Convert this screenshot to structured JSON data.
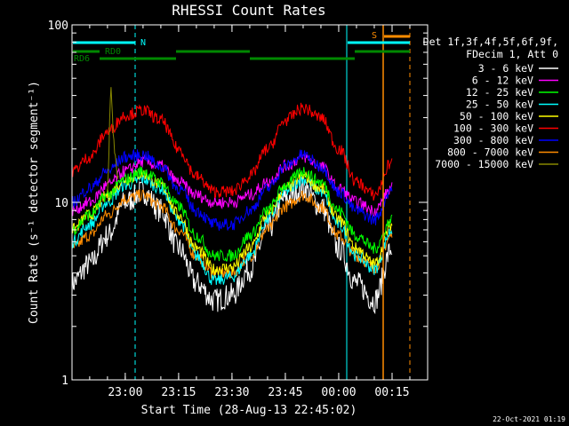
{
  "chart_data": {
    "type": "line",
    "title": "RHESSI Count Rates",
    "xlabel": "Start Time (28-Aug-13 22:45:02)",
    "ylabel": "Count Rate (s⁻¹ detector segment⁻¹)",
    "yscale": "log",
    "ylim": [
      1,
      100
    ],
    "xlim": [
      "22:45:02",
      "00:25:00"
    ],
    "x_ticks": [
      "23:00",
      "23:15",
      "23:30",
      "23:45",
      "00:00",
      "00:15"
    ],
    "y_ticks": [
      "1",
      "10",
      "100"
    ],
    "legend_header": [
      "Det 1f,3f,4f,5f,6f,9f,",
      "FDecim 1, Att 0"
    ],
    "legend_position": "right",
    "series": [
      {
        "name": "3 - 6 keV",
        "color": "#ffffff",
        "x": [
          "22:45",
          "22:50",
          "22:55",
          "23:00",
          "23:05",
          "23:10",
          "23:15",
          "23:20",
          "23:25",
          "23:30",
          "23:35",
          "23:40",
          "23:45",
          "23:50",
          "23:55",
          "00:00",
          "00:05",
          "00:10",
          "00:15"
        ],
        "values": [
          3.5,
          4.5,
          6.5,
          10,
          11.5,
          9,
          5.5,
          3.5,
          2.8,
          3.0,
          4.2,
          7,
          10.5,
          12,
          9.5,
          5.5,
          3.5,
          2.8,
          5.5
        ]
      },
      {
        "name": "6 - 12 keV",
        "color": "#ff00ff",
        "x": [
          "22:45",
          "22:50",
          "22:55",
          "23:00",
          "23:05",
          "23:10",
          "23:15",
          "23:20",
          "23:25",
          "23:30",
          "23:35",
          "23:40",
          "23:45",
          "23:50",
          "23:55",
          "00:00",
          "00:05",
          "00:10",
          "00:15"
        ],
        "values": [
          9,
          10,
          12.5,
          15,
          17,
          16,
          13,
          11,
          10,
          10,
          11,
          13,
          16,
          18,
          16,
          12,
          10,
          9,
          12
        ]
      },
      {
        "name": "12 - 25 keV",
        "color": "#00ff00",
        "x": [
          "22:45",
          "22:50",
          "22:55",
          "23:00",
          "23:05",
          "23:10",
          "23:15",
          "23:20",
          "23:25",
          "23:30",
          "23:35",
          "23:40",
          "23:45",
          "23:50",
          "23:55",
          "00:00",
          "00:05",
          "00:10",
          "00:15"
        ],
        "values": [
          7,
          8.5,
          11,
          13.5,
          15,
          13,
          9.5,
          6.5,
          5,
          5,
          6.5,
          9,
          12.5,
          15,
          13,
          9,
          6.5,
          5.5,
          8
        ]
      },
      {
        "name": "25 - 50 keV",
        "color": "#00ffff",
        "x": [
          "22:45",
          "22:50",
          "22:55",
          "23:00",
          "23:05",
          "23:10",
          "23:15",
          "23:20",
          "23:25",
          "23:30",
          "23:35",
          "23:40",
          "23:45",
          "23:50",
          "23:55",
          "00:00",
          "00:05",
          "00:10",
          "00:15"
        ],
        "values": [
          6,
          7.5,
          10,
          12.5,
          13.5,
          12,
          8,
          5,
          3.6,
          3.8,
          5,
          8,
          11.5,
          13.5,
          11.5,
          7.5,
          5,
          4.2,
          7
        ]
      },
      {
        "name": "50 - 100 keV",
        "color": "#ffff00",
        "x": [
          "22:45",
          "22:50",
          "22:55",
          "23:00",
          "23:05",
          "23:10",
          "23:15",
          "23:20",
          "23:25",
          "23:30",
          "23:35",
          "23:40",
          "23:45",
          "23:50",
          "23:55",
          "00:00",
          "00:05",
          "00:10",
          "00:15"
        ],
        "values": [
          7,
          8.5,
          11,
          13.5,
          14.5,
          12.5,
          8.5,
          5.5,
          4.2,
          4.3,
          5.5,
          8.5,
          12,
          14,
          12,
          8,
          5.5,
          4.5,
          7.5
        ]
      },
      {
        "name": "100 - 300 keV",
        "color": "#ff0000",
        "x": [
          "22:45",
          "22:50",
          "22:55",
          "23:00",
          "23:05",
          "23:10",
          "23:15",
          "23:20",
          "23:25",
          "23:30",
          "23:35",
          "23:40",
          "23:45",
          "23:50",
          "23:55",
          "00:00",
          "00:05",
          "00:10",
          "00:15"
        ],
        "values": [
          15,
          18,
          25,
          31,
          33,
          29,
          20,
          14,
          11.5,
          11.5,
          14,
          20,
          29,
          34,
          30,
          20,
          13,
          11,
          17
        ]
      },
      {
        "name": "300 - 800 keV",
        "color": "#0000ff",
        "x": [
          "22:45",
          "22:50",
          "22:55",
          "23:00",
          "23:05",
          "23:10",
          "23:15",
          "23:20",
          "23:25",
          "23:30",
          "23:35",
          "23:40",
          "23:45",
          "23:50",
          "23:55",
          "00:00",
          "00:05",
          "00:10",
          "00:15"
        ],
        "values": [
          10,
          12,
          15,
          18,
          18.5,
          16,
          12,
          9,
          7.5,
          7.5,
          9,
          12,
          16,
          18.5,
          16,
          11.5,
          9,
          8,
          12
        ]
      },
      {
        "name": "800 - 7000 keV",
        "color": "#ff8c00",
        "x": [
          "22:45",
          "22:50",
          "22:55",
          "23:00",
          "23:05",
          "23:10",
          "23:15",
          "23:20",
          "23:25",
          "23:30",
          "23:35",
          "23:40",
          "23:45",
          "23:50",
          "23:55",
          "00:00",
          "00:05",
          "00:10",
          "00:15"
        ],
        "values": [
          5.5,
          6.5,
          8.5,
          10.5,
          11,
          9.5,
          7,
          5,
          4,
          4,
          5,
          7,
          9.5,
          11,
          9.5,
          6.5,
          5,
          4.3,
          6.5
        ]
      },
      {
        "name": "7000 - 15000 keV",
        "color": "#888800",
        "x": [
          "22:55",
          "22:56",
          "22:57",
          "22:58"
        ],
        "values": [
          12,
          42,
          20,
          14
        ]
      }
    ],
    "annotations": {
      "attenuator_bars": [
        {
          "label": "N",
          "color": "#00ffff"
        },
        {
          "label": "RD0",
          "color": "#008800"
        },
        {
          "label": "RD6",
          "color": "#008800"
        },
        {
          "label": "S",
          "color": "#ff8c00"
        }
      ]
    },
    "timestamp": "22-Oct-2021 01:19"
  }
}
